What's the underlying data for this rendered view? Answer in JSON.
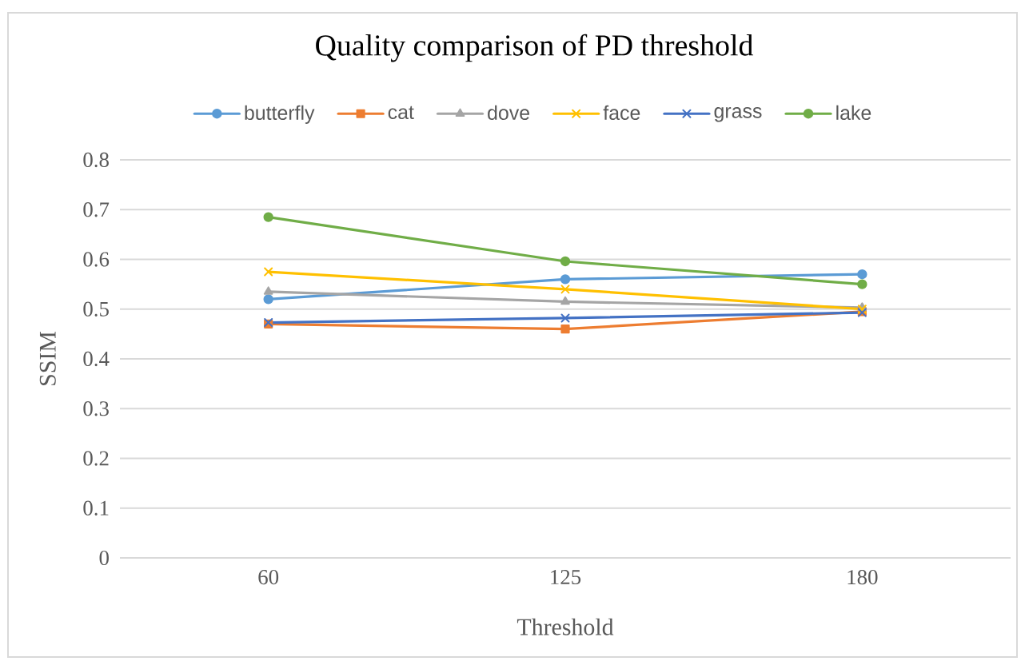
{
  "chart_data": {
    "type": "line",
    "title": "Quality comparison of PD threshold",
    "xlabel": "Threshold",
    "ylabel": "SSIM",
    "categories": [
      "60",
      "125",
      "180"
    ],
    "series": [
      {
        "name": "butterfly",
        "color": "#5b9bd5",
        "marker": "circle",
        "values": [
          0.52,
          0.56,
          0.57
        ]
      },
      {
        "name": "cat",
        "color": "#ed7d31",
        "marker": "square",
        "values": [
          0.47,
          0.46,
          0.495
        ]
      },
      {
        "name": "dove",
        "color": "#a5a5a5",
        "marker": "triangle",
        "values": [
          0.535,
          0.515,
          0.503
        ]
      },
      {
        "name": "face",
        "color": "#ffc000",
        "marker": "cross",
        "values": [
          0.575,
          0.54,
          0.5
        ]
      },
      {
        "name": "grass",
        "color": "#4472c4",
        "marker": "cross",
        "values": [
          0.473,
          0.482,
          0.493
        ]
      },
      {
        "name": "lake",
        "color": "#70ad47",
        "marker": "circle",
        "values": [
          0.685,
          0.596,
          0.55
        ]
      }
    ],
    "ylim": [
      0,
      0.8
    ],
    "yticks": [
      0,
      0.1,
      0.2,
      0.3,
      0.4,
      0.5,
      0.6,
      0.7,
      0.8
    ],
    "grid": "y",
    "legend": "top"
  }
}
